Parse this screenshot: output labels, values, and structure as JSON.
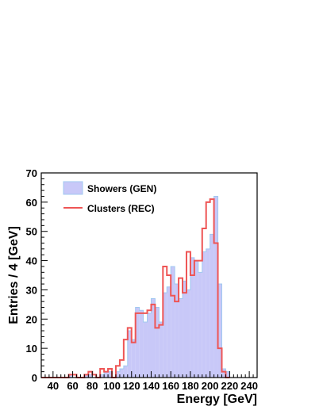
{
  "chart_data": {
    "type": "histogram",
    "title": "",
    "xlabel": "Energy [GeV]",
    "ylabel": "Entries / 4 [GeV]",
    "xlim": [
      28,
      248
    ],
    "ylim": [
      0,
      70
    ],
    "bin_width": 4,
    "x_ticks": [
      40,
      60,
      80,
      100,
      120,
      140,
      160,
      180,
      200,
      220,
      240
    ],
    "y_ticks": [
      0,
      10,
      20,
      30,
      40,
      50,
      60,
      70
    ],
    "grid": false,
    "legend_position": "top-left",
    "bin_edges_start": 28,
    "series": [
      {
        "name": "Showers (GEN)",
        "style": "filled",
        "color": "#c8c8f8",
        "edge_color": "#a0c8f0",
        "values": [
          0,
          0,
          0,
          0,
          0,
          0,
          0,
          1,
          0,
          0,
          0,
          1,
          1,
          0,
          0,
          1,
          2,
          2,
          0,
          2,
          3,
          4,
          16,
          13,
          24,
          23,
          19,
          22,
          27,
          24,
          19,
          29,
          31,
          38,
          32,
          27,
          33,
          30,
          41,
          40,
          36,
          43,
          44,
          49,
          62,
          32,
          3,
          2
        ]
      },
      {
        "name": "Clusters (REC)",
        "style": "step",
        "color": "#ee5555",
        "values": [
          0,
          0,
          0,
          0,
          0,
          0,
          0,
          1,
          1,
          0,
          0,
          1,
          2,
          1,
          0,
          3,
          2,
          3,
          0,
          4,
          6,
          13,
          17,
          12,
          22,
          22,
          22,
          23,
          25,
          17,
          18,
          38,
          35,
          28,
          26,
          34,
          29,
          43,
          35,
          40,
          40,
          51,
          60,
          61,
          46,
          10,
          2,
          0
        ]
      }
    ]
  }
}
